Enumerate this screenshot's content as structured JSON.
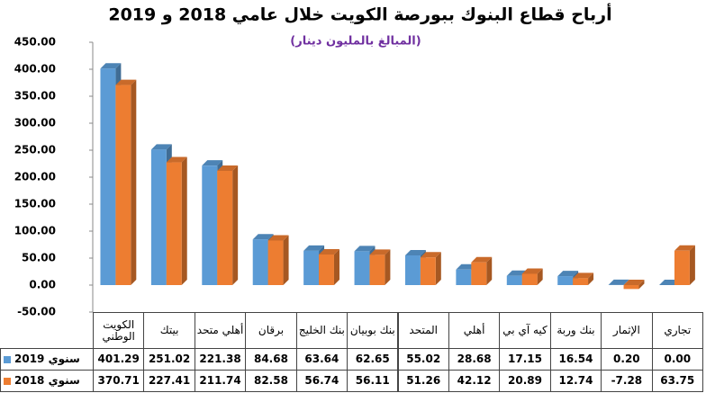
{
  "chart_data": {
    "type": "bar",
    "title": "أرباح قطاع البنوك ببورصة الكويت خلال عامي 2018 و 2019",
    "subtitle": "(المبالغ بالمليون دينار)",
    "categories": [
      "الكويت الوطني",
      "بيتك",
      "أهلي متحد",
      "برقان",
      "بنك الخليج",
      "بنك بوبيان",
      "المتحد",
      "أهلي",
      "كيه آي بي",
      "بنك وربة",
      "الإثمار",
      "تجاري"
    ],
    "series": [
      {
        "name": "سنوي 2019",
        "color": "#5b9bd5",
        "values": [
          401.29,
          251.02,
          221.38,
          84.68,
          63.64,
          62.65,
          55.02,
          28.68,
          17.15,
          16.54,
          0.2,
          0
        ],
        "value_labels": [
          "401.29",
          "251.02",
          "221.38",
          "84.68",
          "63.64",
          "62.65",
          "55.02",
          "28.68",
          "17.15",
          "16.54",
          "0.20",
          "0.00"
        ]
      },
      {
        "name": "سنوي 2018",
        "color": "#ed7d31",
        "values": [
          370.71,
          227.41,
          211.74,
          82.58,
          56.74,
          56.11,
          51.26,
          42.12,
          20.89,
          12.74,
          -7.28,
          63.75
        ],
        "value_labels": [
          "370.71",
          "227.41",
          "211.74",
          "82.58",
          "56.74",
          "56.11",
          "51.26",
          "42.12",
          "20.89",
          "12.74",
          "-7.28",
          "63.75"
        ]
      }
    ],
    "ylim": [
      -50,
      450
    ],
    "yticks": [
      {
        "value": -50,
        "label": "-50.00"
      },
      {
        "value": 0,
        "label": "0.00"
      },
      {
        "value": 50,
        "label": "50.00"
      },
      {
        "value": 100,
        "label": "100.00"
      },
      {
        "value": 150,
        "label": "150.00"
      },
      {
        "value": 200,
        "label": "200.00"
      },
      {
        "value": 250,
        "label": "250.00"
      },
      {
        "value": 300,
        "label": "300.00"
      },
      {
        "value": 350,
        "label": "350.00"
      },
      {
        "value": 400,
        "label": "400.00"
      },
      {
        "value": 450,
        "label": "450.00"
      }
    ],
    "grid": false
  }
}
